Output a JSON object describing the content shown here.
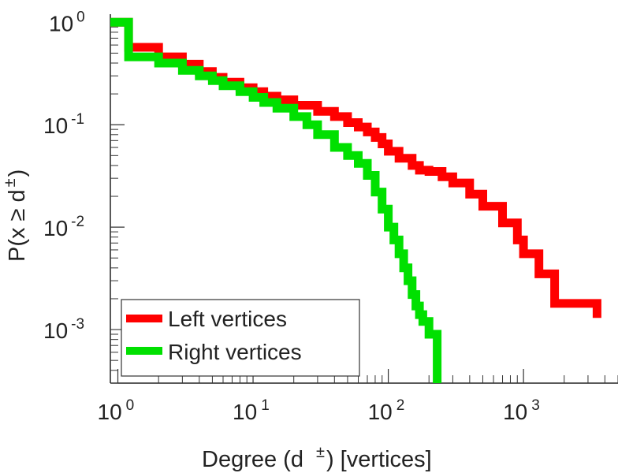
{
  "chart_data": {
    "type": "line",
    "subtype": "log-log complementary cumulative distribution (step)",
    "title": "",
    "xlabel": {
      "prefix": "Degree (d",
      "sup": "±",
      "suffix": ") [vertices]"
    },
    "ylabel": {
      "prefix": "P(x ≥ d",
      "sup": "±",
      "suffix": ")"
    },
    "xscale": "log",
    "yscale": "log",
    "xlim": [
      0.88,
      5000
    ],
    "ylim": [
      0.0003,
      1.2
    ],
    "x_ticks": [
      {
        "value": 1,
        "base": "10",
        "exp": "0"
      },
      {
        "value": 10,
        "base": "10",
        "exp": "1"
      },
      {
        "value": 100,
        "base": "10",
        "exp": "2"
      },
      {
        "value": 1000,
        "base": "10",
        "exp": "3"
      }
    ],
    "y_ticks": [
      {
        "value": 1,
        "base": "10",
        "exp": "0"
      },
      {
        "value": 0.1,
        "base": "10",
        "exp": "-1"
      },
      {
        "value": 0.01,
        "base": "10",
        "exp": "-2"
      },
      {
        "value": 0.001,
        "base": "10",
        "exp": "-3"
      }
    ],
    "grid": false,
    "legend_position": "bottom-left",
    "series": [
      {
        "name": "Left vertices",
        "color": "#ff0000",
        "x": [
          1,
          1.2,
          2,
          3,
          4,
          5,
          6,
          8,
          10,
          12,
          15,
          20,
          30,
          40,
          50,
          60,
          70,
          80,
          90,
          100,
          120,
          150,
          170,
          200,
          250,
          300,
          400,
          500,
          700,
          900,
          1000,
          1300,
          1700,
          2000,
          3000,
          3500
        ],
        "y": [
          1,
          0.57,
          0.46,
          0.39,
          0.33,
          0.29,
          0.26,
          0.23,
          0.21,
          0.19,
          0.175,
          0.155,
          0.135,
          0.12,
          0.105,
          0.095,
          0.085,
          0.075,
          0.065,
          0.055,
          0.047,
          0.04,
          0.036,
          0.035,
          0.031,
          0.027,
          0.021,
          0.016,
          0.011,
          0.0075,
          0.0055,
          0.0035,
          0.0018,
          0.0018,
          0.0018,
          0.0013
        ]
      },
      {
        "name": "Right vertices",
        "color": "#00e000",
        "x": [
          1,
          1.2,
          2,
          3,
          4,
          5,
          6,
          8,
          10,
          12,
          15,
          20,
          25,
          30,
          40,
          50,
          60,
          70,
          80,
          90,
          100,
          110,
          120,
          130,
          140,
          150,
          160,
          170,
          180,
          200,
          230
        ],
        "y": [
          1,
          0.46,
          0.4,
          0.34,
          0.3,
          0.27,
          0.24,
          0.21,
          0.185,
          0.165,
          0.145,
          0.12,
          0.1,
          0.08,
          0.06,
          0.05,
          0.042,
          0.032,
          0.022,
          0.015,
          0.01,
          0.0075,
          0.0055,
          0.004,
          0.003,
          0.0022,
          0.0017,
          0.0014,
          0.0012,
          0.0009,
          0.0003
        ]
      }
    ]
  }
}
